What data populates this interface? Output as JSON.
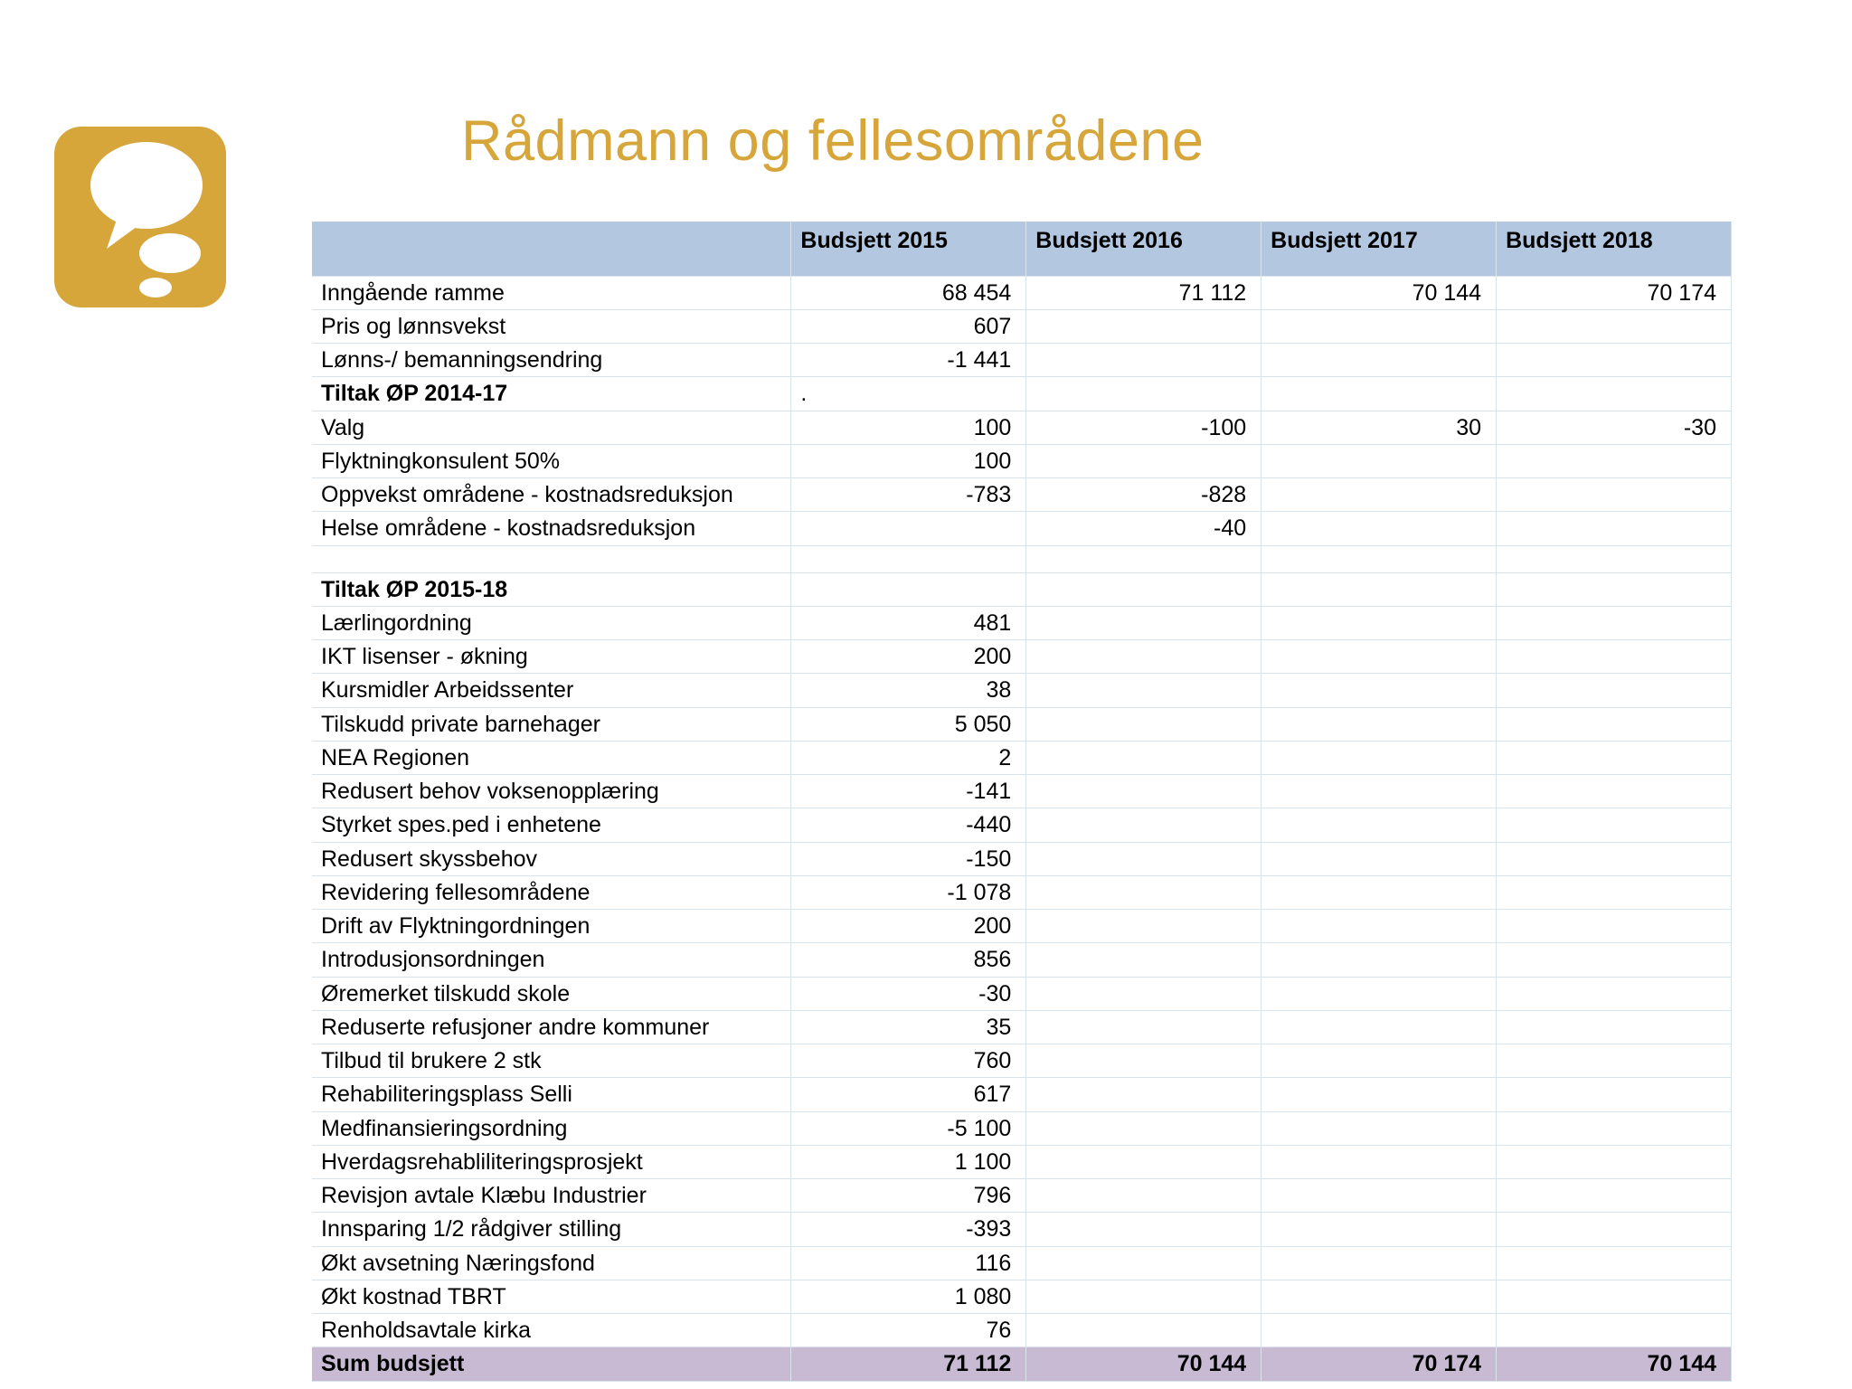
{
  "title": "Rådmann og fellesområdene",
  "logo": {
    "bg": "#d6a63b",
    "bubble": "#ffffff"
  },
  "table": {
    "header_bg": "#b4c7e0",
    "sum_bg": "#c8bad3",
    "border_color": "#d8e3ec",
    "font_size": 25,
    "columns": [
      {
        "label": ""
      },
      {
        "label": "Budsjett 2015"
      },
      {
        "label": "Budsjett 2016"
      },
      {
        "label": "Budsjett 2017"
      },
      {
        "label": "Budsjett 2018"
      }
    ],
    "rows": [
      {
        "label": "Inngående ramme",
        "v": [
          "68 454",
          "71 112",
          "70 144",
          "70 174"
        ]
      },
      {
        "label": "Pris og lønnsvekst",
        "v": [
          "607",
          "",
          "",
          ""
        ]
      },
      {
        "label": "Lønns-/ bemanningsendring",
        "v": [
          "-1 441",
          "",
          "",
          ""
        ]
      },
      {
        "label": "Tiltak ØP 2014-17",
        "bold": true,
        "v": [
          ".",
          "",
          "",
          ""
        ],
        "first_left": true
      },
      {
        "label": "Valg",
        "v": [
          "100",
          "-100",
          "30",
          "-30"
        ]
      },
      {
        "label": "Flyktningkonsulent 50%",
        "v": [
          "100",
          "",
          "",
          ""
        ]
      },
      {
        "label": "Oppvekst områdene - kostnadsreduksjon",
        "v": [
          "-783",
          "-828",
          "",
          ""
        ],
        "multi": true
      },
      {
        "label": "Helse områdene - kostnadsreduksjon",
        "v": [
          "",
          "-40",
          "",
          ""
        ]
      },
      {
        "label": "",
        "v": [
          "",
          "",
          "",
          ""
        ]
      },
      {
        "label": "Tiltak ØP 2015-18",
        "bold": true,
        "v": [
          "",
          "",
          "",
          ""
        ]
      },
      {
        "label": "Lærlingordning",
        "v": [
          "481",
          "",
          "",
          ""
        ]
      },
      {
        "label": "IKT lisenser - økning",
        "v": [
          "200",
          "",
          "",
          ""
        ]
      },
      {
        "label": "Kursmidler Arbeidssenter",
        "v": [
          "38",
          "",
          "",
          ""
        ]
      },
      {
        "label": "Tilskudd private barnehager",
        "v": [
          "5 050",
          "",
          "",
          ""
        ]
      },
      {
        "label": "NEA Regionen",
        "v": [
          "2",
          "",
          "",
          ""
        ]
      },
      {
        "label": "Redusert behov voksenopplæring",
        "v": [
          "-141",
          "",
          "",
          ""
        ]
      },
      {
        "label": "Styrket spes.ped i enhetene",
        "v": [
          "-440",
          "",
          "",
          ""
        ]
      },
      {
        "label": "Redusert skyssbehov",
        "v": [
          "-150",
          "",
          "",
          ""
        ]
      },
      {
        "label": "Revidering fellesområdene",
        "v": [
          "-1 078",
          "",
          "",
          ""
        ]
      },
      {
        "label": "Drift av Flyktningordningen",
        "v": [
          "200",
          "",
          "",
          ""
        ]
      },
      {
        "label": "Introdusjonsordningen",
        "v": [
          "856",
          "",
          "",
          ""
        ]
      },
      {
        "label": "Øremerket tilskudd skole",
        "v": [
          "-30",
          "",
          "",
          ""
        ]
      },
      {
        "label": "Reduserte refusjoner andre kommuner",
        "v": [
          "35",
          "",
          "",
          ""
        ],
        "multi": true
      },
      {
        "label": "Tilbud til brukere 2 stk",
        "v": [
          "760",
          "",
          "",
          ""
        ]
      },
      {
        "label": "Rehabiliteringsplass Selli",
        "v": [
          "617",
          "",
          "",
          ""
        ]
      },
      {
        "label": "Medfinansieringsordning",
        "v": [
          "-5 100",
          "",
          "",
          ""
        ]
      },
      {
        "label": "Hverdagsrehabliliteringsprosjekt",
        "v": [
          "1 100",
          "",
          "",
          ""
        ]
      },
      {
        "label": "Revisjon avtale Klæbu Industrier",
        "v": [
          "796",
          "",
          "",
          ""
        ]
      },
      {
        "label": "Innsparing 1/2 rådgiver stilling",
        "v": [
          "-393",
          "",
          "",
          ""
        ]
      },
      {
        "label": "Økt avsetning Næringsfond",
        "v": [
          "116",
          "",
          "",
          ""
        ]
      },
      {
        "label": "Økt kostnad TBRT",
        "v": [
          "1 080",
          "",
          "",
          ""
        ]
      },
      {
        "label": "Renholdsavtale kirka",
        "v": [
          "76",
          "",
          "",
          ""
        ]
      },
      {
        "label": "Sum budsjett",
        "sum": true,
        "v": [
          "71 112",
          "70 144",
          "70 174",
          "70 144"
        ]
      }
    ]
  }
}
